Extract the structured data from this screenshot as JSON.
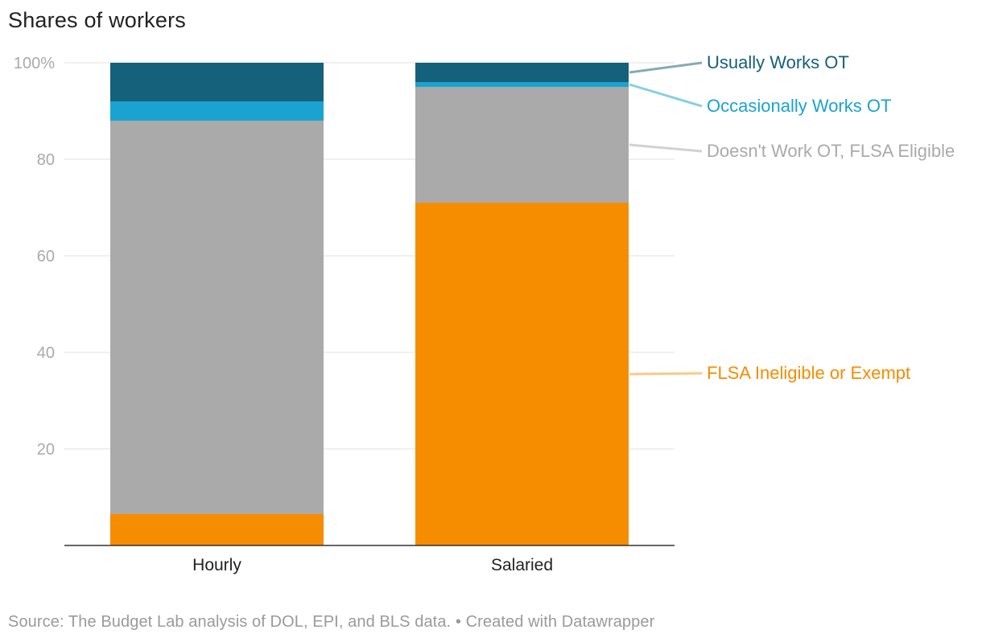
{
  "chart_data": {
    "type": "bar",
    "stacked": true,
    "title": "Shares of workers",
    "xlabel": "",
    "ylabel": "",
    "ylim": [
      0,
      100
    ],
    "yticks": [
      20,
      40,
      60,
      80,
      100
    ],
    "ytick_labels": [
      "20",
      "40",
      "60",
      "80",
      "100%"
    ],
    "grid": true,
    "legend_placement": "right (direct labels)",
    "categories": [
      "Hourly",
      "Salaried"
    ],
    "series": [
      {
        "name": "FLSA Ineligible or Exempt",
        "color": "#f68c00",
        "values": [
          6.5,
          71.0
        ]
      },
      {
        "name": "Doesn't Work OT, FLSA Eligible",
        "color": "#aaaaaa",
        "values": [
          81.5,
          24.0
        ]
      },
      {
        "name": "Occasionally Works OT",
        "color": "#1aa3d1",
        "values": [
          4.0,
          1.0
        ]
      },
      {
        "name": "Usually Works OT",
        "color": "#15607a",
        "values": [
          8.0,
          4.0
        ]
      }
    ],
    "label_colors": [
      "#f68c00",
      "#aaaaaa",
      "#1aa3d1",
      "#15607a"
    ],
    "connector_colors": [
      "#fac98a",
      "#d2d2d2",
      "#86cfe6",
      "#86aab8"
    ]
  },
  "source": "Source: The Budget Lab analysis of DOL, EPI, and BLS data. • Created with Datawrapper"
}
